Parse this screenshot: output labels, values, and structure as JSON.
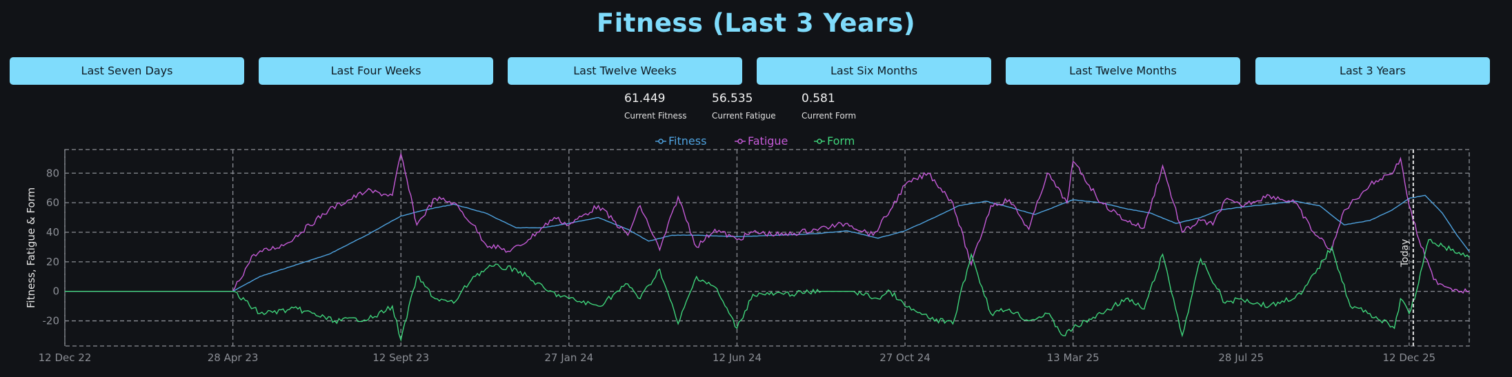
{
  "title": "Fitness (Last 3 Years)",
  "buttons": [
    {
      "label": "Last Seven Days"
    },
    {
      "label": "Last Four Weeks"
    },
    {
      "label": "Last Twelve Weeks"
    },
    {
      "label": "Last Six Months"
    },
    {
      "label": "Last Twelve Months"
    },
    {
      "label": "Last 3 Years"
    }
  ],
  "stats": [
    {
      "value": "61.449",
      "label": "Current Fitness"
    },
    {
      "value": "56.535",
      "label": "Current Fatigue"
    },
    {
      "value": "0.581",
      "label": "Current Form"
    }
  ],
  "colors": {
    "fitness": "#4fa3e0",
    "fatigue": "#c65bd8",
    "form": "#3fd57b",
    "accent": "#7fdcfc",
    "grid": "#8c8f96"
  },
  "chart_data": {
    "type": "line",
    "ylabel": "Fitness, Fatigue & Form",
    "ylim": [
      -37,
      96
    ],
    "yticks": [
      -20,
      0,
      20,
      40,
      60,
      80
    ],
    "x_tick_labels": [
      "12 Dec 22",
      "28 Apr 23",
      "12 Sept 23",
      "27 Jan 24",
      "12 Jun 24",
      "27 Oct 24",
      "13 Mar 25",
      "28 Jul 25",
      "12 Dec 25"
    ],
    "annotation": "Today",
    "legend_position": "top-center",
    "grid": true,
    "series": [
      {
        "name": "Fitness",
        "x": [
          "2022-12-12",
          "2023-04-28",
          "2023-05-20",
          "2023-06-15",
          "2023-07-15",
          "2023-08-15",
          "2023-09-12",
          "2023-10-01",
          "2023-10-25",
          "2023-11-20",
          "2023-12-15",
          "2024-01-05",
          "2024-01-27",
          "2024-02-20",
          "2024-03-15",
          "2024-04-01",
          "2024-04-20",
          "2024-05-10",
          "2024-06-12",
          "2024-07-15",
          "2024-08-15",
          "2024-09-10",
          "2024-10-05",
          "2024-10-27",
          "2024-11-20",
          "2024-12-10",
          "2025-01-01",
          "2025-01-20",
          "2025-02-10",
          "2025-03-13",
          "2025-04-05",
          "2025-04-25",
          "2025-05-15",
          "2025-06-05",
          "2025-06-25",
          "2025-07-10",
          "2025-07-28",
          "2025-08-20",
          "2025-09-10",
          "2025-09-30",
          "2025-10-20",
          "2025-11-10",
          "2025-11-28",
          "2025-12-12",
          "2025-12-25",
          "2026-01-08",
          "2026-01-20",
          "2026-01-30"
        ],
        "values": [
          0,
          0,
          10,
          17,
          25,
          38,
          51,
          55,
          59,
          53,
          43,
          43,
          46,
          50,
          42,
          34,
          38,
          38,
          37,
          38,
          39,
          41,
          36,
          41,
          50,
          58,
          61,
          57,
          52,
          62,
          60,
          56,
          53,
          46,
          50,
          55,
          57,
          59,
          61,
          58,
          45,
          48,
          55,
          63,
          65,
          53,
          38,
          27
        ]
      },
      {
        "name": "Fatigue",
        "x": [
          "2022-12-12",
          "2023-04-28",
          "2023-05-15",
          "2023-06-10",
          "2023-07-15",
          "2023-08-15",
          "2023-09-05",
          "2023-09-12",
          "2023-09-25",
          "2023-10-10",
          "2023-10-25",
          "2023-11-10",
          "2023-11-20",
          "2023-12-10",
          "2023-12-25",
          "2024-01-15",
          "2024-01-27",
          "2024-02-20",
          "2024-03-15",
          "2024-03-25",
          "2024-04-10",
          "2024-04-25",
          "2024-05-10",
          "2024-05-25",
          "2024-06-12",
          "2024-06-25",
          "2024-07-20",
          "2024-08-15",
          "2024-09-10",
          "2024-10-01",
          "2024-10-15",
          "2024-10-27",
          "2024-11-15",
          "2024-12-05",
          "2024-12-20",
          "2025-01-05",
          "2025-01-20",
          "2025-02-05",
          "2025-02-20",
          "2025-03-08",
          "2025-03-13",
          "2025-04-05",
          "2025-04-25",
          "2025-05-10",
          "2025-05-25",
          "2025-06-10",
          "2025-06-25",
          "2025-07-05",
          "2025-07-15",
          "2025-07-28",
          "2025-08-20",
          "2025-09-10",
          "2025-09-25",
          "2025-10-10",
          "2025-10-20",
          "2025-11-10",
          "2025-11-30",
          "2025-12-05",
          "2025-12-12",
          "2025-12-20",
          "2026-01-01",
          "2026-01-15",
          "2026-01-30"
        ],
        "values": [
          0,
          0,
          25,
          32,
          55,
          68,
          65,
          93,
          45,
          63,
          60,
          45,
          32,
          27,
          35,
          50,
          45,
          58,
          38,
          58,
          28,
          64,
          30,
          42,
          35,
          40,
          38,
          42,
          46,
          38,
          55,
          72,
          80,
          60,
          18,
          58,
          62,
          42,
          80,
          60,
          88,
          60,
          48,
          43,
          85,
          40,
          48,
          45,
          62,
          58,
          65,
          60,
          40,
          28,
          55,
          72,
          82,
          90,
          58,
          35,
          8,
          2,
          0
        ]
      },
      {
        "name": "Form",
        "x": [
          "2022-12-12",
          "2023-04-28",
          "2023-05-20",
          "2023-06-20",
          "2023-07-20",
          "2023-08-20",
          "2023-09-05",
          "2023-09-12",
          "2023-09-25",
          "2023-10-10",
          "2023-10-25",
          "2023-11-10",
          "2023-11-25",
          "2023-12-15",
          "2024-01-10",
          "2024-01-27",
          "2024-02-20",
          "2024-03-15",
          "2024-03-25",
          "2024-04-10",
          "2024-04-25",
          "2024-05-10",
          "2024-05-25",
          "2024-06-12",
          "2024-06-25",
          "2024-07-20",
          "2024-08-20",
          "2024-09-15",
          "2024-10-05",
          "2024-10-15",
          "2024-10-27",
          "2024-11-15",
          "2024-12-05",
          "2024-12-20",
          "2025-01-05",
          "2025-01-20",
          "2025-02-05",
          "2025-02-20",
          "2025-03-05",
          "2025-03-13",
          "2025-04-05",
          "2025-04-25",
          "2025-05-10",
          "2025-05-25",
          "2025-06-10",
          "2025-06-25",
          "2025-07-15",
          "2025-07-28",
          "2025-08-20",
          "2025-09-15",
          "2025-10-10",
          "2025-10-25",
          "2025-11-10",
          "2025-11-30",
          "2025-12-05",
          "2025-12-12",
          "2025-12-18",
          "2025-12-28",
          "2026-01-10",
          "2026-01-30"
        ],
        "values": [
          0,
          0,
          -15,
          -12,
          -20,
          -18,
          -10,
          -33,
          10,
          -5,
          -8,
          10,
          17,
          15,
          0,
          -5,
          -10,
          5,
          -5,
          15,
          -22,
          10,
          3,
          -25,
          -2,
          -2,
          0,
          0,
          -5,
          0,
          -10,
          -18,
          -22,
          25,
          -15,
          -12,
          -20,
          -15,
          -30,
          -25,
          -15,
          -5,
          -12,
          25,
          -30,
          22,
          -8,
          -5,
          -10,
          -2,
          30,
          -10,
          -15,
          -25,
          -5,
          -15,
          0,
          35,
          30,
          23
        ]
      }
    ]
  }
}
